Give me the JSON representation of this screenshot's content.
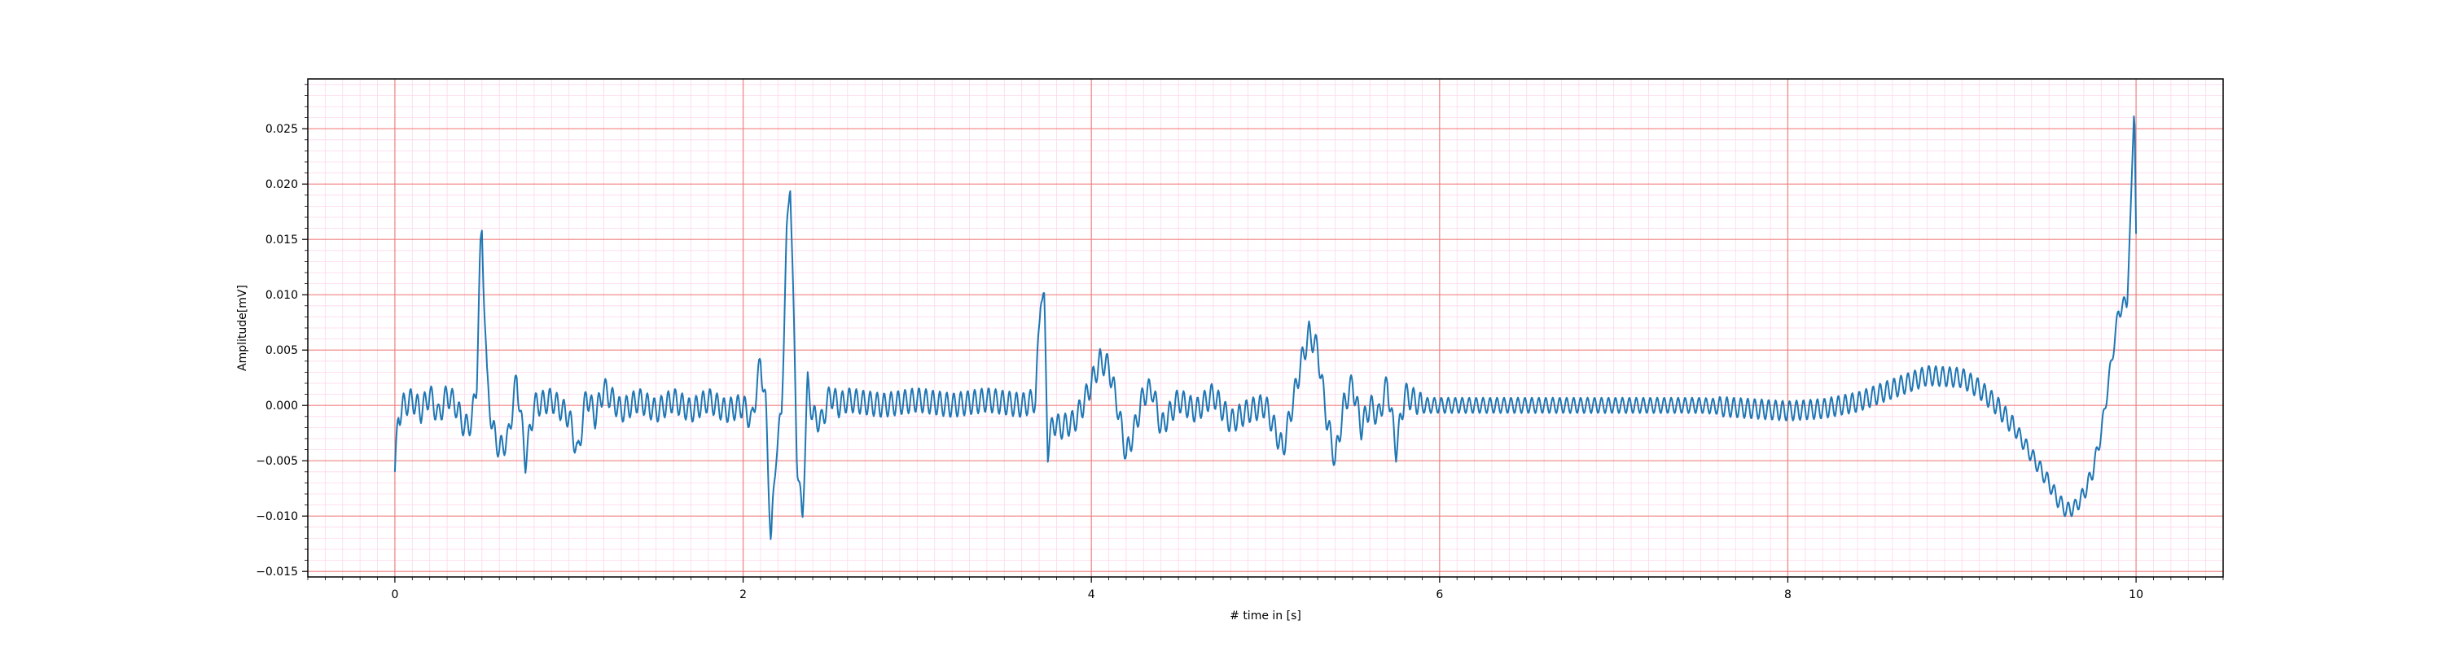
{
  "chart_data": {
    "type": "line",
    "xlabel": "# time in [s]",
    "ylabel": "Amplitude[mV]",
    "xlim": [
      -0.5,
      10.5
    ],
    "ylim": [
      -0.0155,
      0.0295
    ],
    "x_ticks": [
      0,
      2,
      4,
      6,
      8,
      10
    ],
    "x_tick_labels": [
      "0",
      "2",
      "4",
      "6",
      "8",
      "10"
    ],
    "y_ticks": [
      -0.015,
      -0.01,
      -0.005,
      0.0,
      0.005,
      0.01,
      0.015,
      0.02,
      0.025
    ],
    "y_tick_labels": [
      "−0.015",
      "−0.010",
      "−0.005",
      "0.000",
      "0.005",
      "0.010",
      "0.015",
      "0.020",
      "0.025"
    ],
    "grid": {
      "major": true,
      "minor": true,
      "major_color": "#f08080",
      "minor_color": "#ffd6ec"
    },
    "series": [
      {
        "color": "#1f77b4",
        "x": [
          0.0,
          0.02,
          0.05,
          0.1,
          0.15,
          0.2,
          0.25,
          0.3,
          0.35,
          0.4,
          0.44,
          0.47,
          0.49,
          0.5,
          0.51,
          0.53,
          0.56,
          0.6,
          0.65,
          0.7,
          0.75,
          0.8,
          0.9,
          1.0,
          1.05,
          1.1,
          1.15,
          1.2,
          1.3,
          1.4,
          1.5,
          1.6,
          1.7,
          1.8,
          1.9,
          2.0,
          2.05,
          2.1,
          2.13,
          2.16,
          2.19,
          2.22,
          2.25,
          2.27,
          2.29,
          2.31,
          2.34,
          2.37,
          2.4,
          2.45,
          2.5,
          2.55,
          2.6,
          2.8,
          3.0,
          3.2,
          3.4,
          3.6,
          3.68,
          3.71,
          3.73,
          3.75,
          3.78,
          3.82,
          3.9,
          3.95,
          4.0,
          4.05,
          4.1,
          4.15,
          4.2,
          4.25,
          4.3,
          4.35,
          4.4,
          4.5,
          4.6,
          4.7,
          4.8,
          4.9,
          5.0,
          5.1,
          5.2,
          5.25,
          5.3,
          5.35,
          5.4,
          5.45,
          5.5,
          5.55,
          5.6,
          5.65,
          5.7,
          5.75,
          5.8,
          5.85,
          5.9,
          6.0,
          6.5,
          7.0,
          7.5,
          8.0,
          8.2,
          8.4,
          8.6,
          8.8,
          9.0,
          9.1,
          9.2,
          9.3,
          9.4,
          9.5,
          9.55,
          9.6,
          9.65,
          9.7,
          9.75,
          9.8,
          9.85,
          9.9,
          9.95,
          9.97,
          9.99,
          10.0
        ],
        "y": [
          -0.006,
          -0.001,
          0.0,
          0.0005,
          -0.0005,
          0.001,
          -0.001,
          0.001,
          0.0,
          -0.002,
          -0.0015,
          0.002,
          0.0135,
          0.0158,
          0.011,
          0.002,
          -0.002,
          -0.004,
          -0.003,
          0.0025,
          -0.005,
          0.0,
          0.0005,
          -0.001,
          -0.0045,
          0.001,
          -0.001,
          0.0015,
          -0.0005,
          0.0005,
          -0.0005,
          0.0005,
          -0.0005,
          0.0005,
          -0.0005,
          0.0,
          -0.0015,
          0.004,
          0.0,
          -0.0125,
          -0.004,
          -0.001,
          0.015,
          0.021,
          0.008,
          -0.005,
          -0.0105,
          0.002,
          -0.001,
          -0.0015,
          0.001,
          0.0,
          0.0005,
          0.0,
          0.0005,
          0.0,
          0.0005,
          0.0,
          0.0005,
          0.0105,
          0.009,
          -0.004,
          -0.0015,
          -0.002,
          -0.0015,
          0.0,
          0.002,
          0.004,
          0.0035,
          0.0,
          -0.0045,
          -0.002,
          0.001,
          0.0015,
          -0.002,
          0.0005,
          -0.0005,
          0.001,
          -0.0015,
          -0.0005,
          0.0,
          -0.004,
          0.0035,
          0.0065,
          0.005,
          -0.001,
          -0.005,
          0.0,
          0.002,
          -0.002,
          0.0,
          -0.001,
          0.002,
          -0.004,
          0.001,
          0.0005,
          0.0,
          0.0,
          0.0,
          0.0,
          0.0,
          -0.0005,
          -0.0003,
          0.0003,
          0.0015,
          0.0027,
          0.0025,
          0.0015,
          0.0,
          -0.002,
          -0.0045,
          -0.007,
          -0.0085,
          -0.0095,
          -0.0092,
          -0.008,
          -0.006,
          -0.0025,
          0.003,
          0.0085,
          0.0095,
          0.018,
          0.0275,
          0.0155
        ]
      }
    ]
  }
}
